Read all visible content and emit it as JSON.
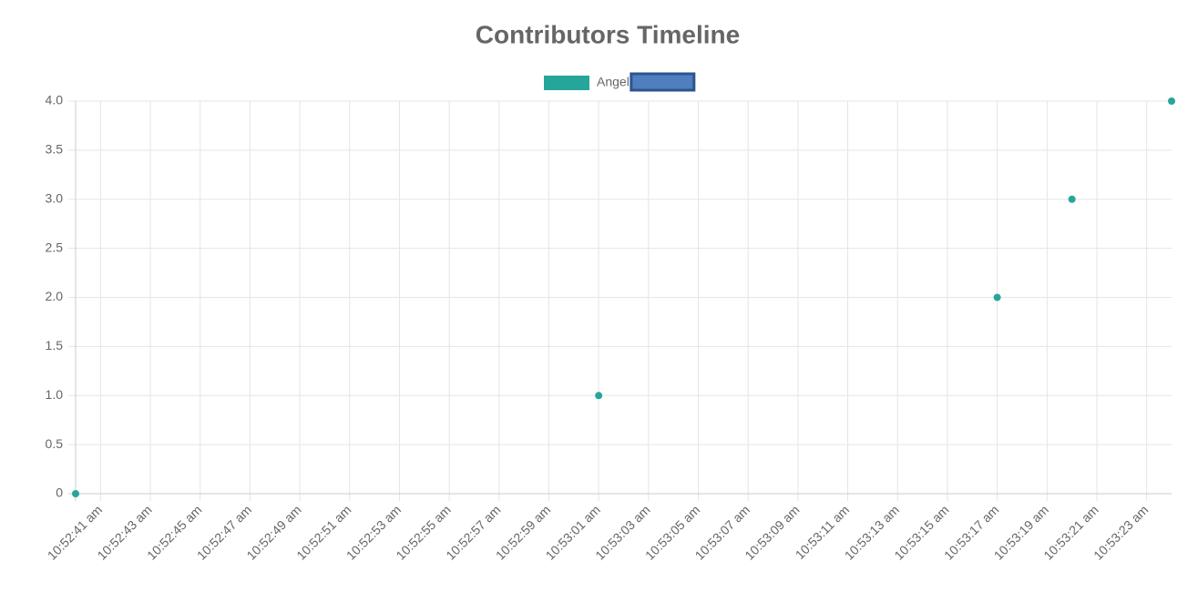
{
  "chart_data": {
    "type": "scatter",
    "title": "Contributors Timeline",
    "series": [
      {
        "name": "Angel",
        "color": "#26a69a",
        "x": [
          "10:52:40",
          "10:53:01",
          "10:53:17",
          "10:53:20",
          "10:53:24"
        ],
        "values": [
          0,
          1,
          2,
          3,
          4
        ]
      },
      {
        "color": "#4f7fbe",
        "border": "#2c5590",
        "x": [],
        "values": []
      }
    ],
    "xlim": [
      "10:52:40",
      "10:53:24"
    ],
    "xticks": [
      {
        "value": "10:52:41",
        "label": "10:52:41 am"
      },
      {
        "value": "10:52:43",
        "label": "10:52:43 am"
      },
      {
        "value": "10:52:45",
        "label": "10:52:45 am"
      },
      {
        "value": "10:52:47",
        "label": "10:52:47 am"
      },
      {
        "value": "10:52:49",
        "label": "10:52:49 am"
      },
      {
        "value": "10:52:51",
        "label": "10:52:51 am"
      },
      {
        "value": "10:52:53",
        "label": "10:52:53 am"
      },
      {
        "value": "10:52:55",
        "label": "10:52:55 am"
      },
      {
        "value": "10:52:57",
        "label": "10:52:57 am"
      },
      {
        "value": "10:52:59",
        "label": "10:52:59 am"
      },
      {
        "value": "10:53:01",
        "label": "10:53:01 am"
      },
      {
        "value": "10:53:03",
        "label": "10:53:03 am"
      },
      {
        "value": "10:53:05",
        "label": "10:53:05 am"
      },
      {
        "value": "10:53:07",
        "label": "10:53:07 am"
      },
      {
        "value": "10:53:09",
        "label": "10:53:09 am"
      },
      {
        "value": "10:53:11",
        "label": "10:53:11 am"
      },
      {
        "value": "10:53:13",
        "label": "10:53:13 am"
      },
      {
        "value": "10:53:15",
        "label": "10:53:15 am"
      },
      {
        "value": "10:53:17",
        "label": "10:53:17 am"
      },
      {
        "value": "10:53:19",
        "label": "10:53:19 am"
      },
      {
        "value": "10:53:21",
        "label": "10:53:21 am"
      },
      {
        "value": "10:53:23",
        "label": "10:53:23 am"
      }
    ],
    "ylim": [
      0,
      4
    ],
    "yticks": [
      0,
      0.5,
      {
        "value": 1,
        "label": "1.0"
      },
      1.5,
      {
        "value": 2,
        "label": "2.0"
      },
      2.5,
      {
        "value": 3,
        "label": "3.0"
      },
      3.5,
      {
        "value": 4,
        "label": "4.0"
      }
    ],
    "grid": true
  }
}
